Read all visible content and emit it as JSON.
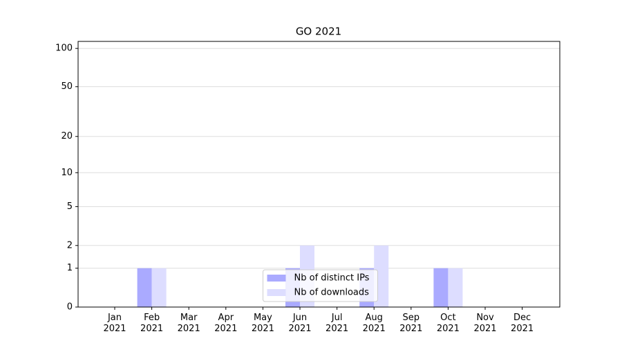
{
  "chart_data": {
    "type": "bar",
    "title": "GO 2021",
    "categories": [
      "Jan\n2021",
      "Feb\n2021",
      "Mar\n2021",
      "Apr\n2021",
      "May\n2021",
      "Jun\n2021",
      "Jul\n2021",
      "Aug\n2021",
      "Sep\n2021",
      "Oct\n2021",
      "Nov\n2021",
      "Dec\n2021"
    ],
    "series": [
      {
        "name": "Nb of distinct IPs",
        "color": "#aaaaff",
        "values": [
          0,
          1,
          0,
          0,
          0,
          1,
          0,
          1,
          0,
          1,
          0,
          0
        ]
      },
      {
        "name": "Nb of downloads",
        "color": "#ddddff",
        "values": [
          0,
          1,
          0,
          0,
          0,
          2,
          0,
          2,
          0,
          1,
          0,
          0
        ]
      }
    ],
    "yscale": "log1p",
    "ylim": [
      0,
      113.5
    ],
    "yticks": [
      0,
      1,
      2,
      5,
      10,
      20,
      50,
      100
    ],
    "grid": true,
    "legend": "lower center"
  }
}
